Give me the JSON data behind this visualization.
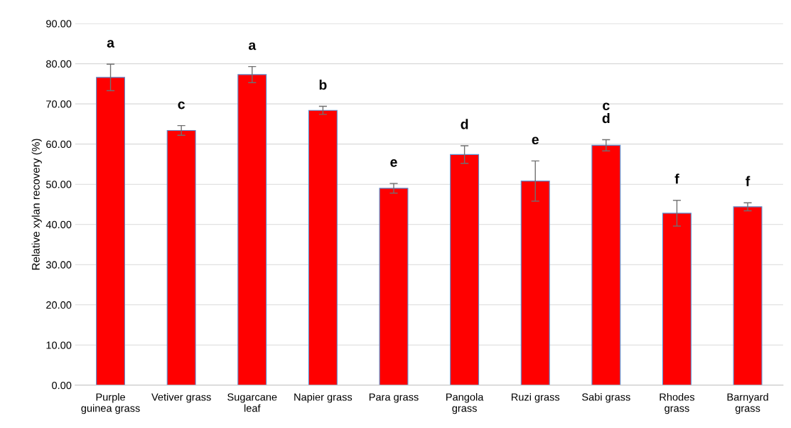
{
  "chart_data": {
    "type": "bar",
    "ylabel": "Relative xylan recovery (%)",
    "categories": [
      "Purple\nguinea grass",
      "Vetiver grass",
      "Sugarcane\nleaf",
      "Napier grass",
      "Para grass",
      "Pangola\ngrass",
      "Ruzi grass",
      "Sabi grass",
      "Rhodes\ngrass",
      "Barnyard\ngrass"
    ],
    "values": [
      76.6,
      63.4,
      77.3,
      68.4,
      49.0,
      57.4,
      50.8,
      59.7,
      42.8,
      44.4
    ],
    "errors": [
      3.3,
      1.2,
      2.0,
      1.0,
      1.2,
      2.2,
      5.0,
      1.4,
      3.2,
      1.0
    ],
    "color": "#ff0000",
    "ylim": [
      0,
      90
    ],
    "yticks": [
      {
        "value": 0,
        "label": "0.00"
      },
      {
        "value": 10,
        "label": "10.00"
      },
      {
        "value": 20,
        "label": "20.00"
      },
      {
        "value": 30,
        "label": "30.00"
      },
      {
        "value": 40,
        "label": "40.00"
      },
      {
        "value": 50,
        "label": "50.00"
      },
      {
        "value": 60,
        "label": "60.00"
      },
      {
        "value": 70,
        "label": "70.00"
      },
      {
        "value": 80,
        "label": "80.00"
      },
      {
        "value": 90,
        "label": "90.00"
      }
    ],
    "grid": "y",
    "annotations": [
      "a",
      "c",
      "a",
      "b",
      "e",
      "d",
      "e",
      "c\nd",
      "f",
      "f"
    ]
  }
}
